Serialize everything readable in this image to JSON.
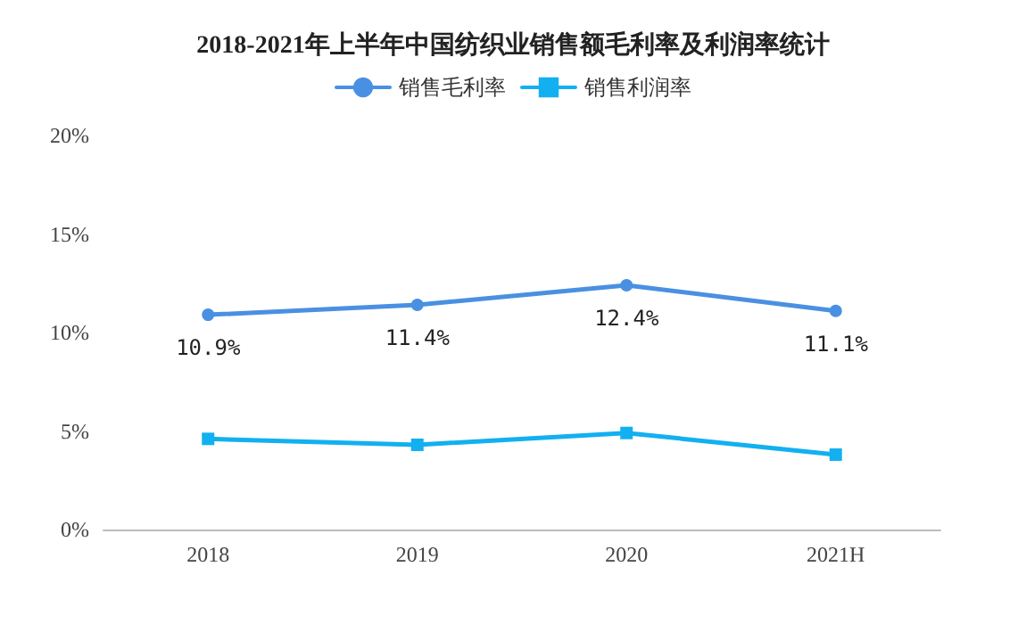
{
  "chart_data": {
    "type": "line",
    "title": "2018-2021年上半年中国纺织业销售额毛利率及利润率统计",
    "categories": [
      "2018",
      "2019",
      "2020",
      "2021H"
    ],
    "series": [
      {
        "name": "销售毛利率",
        "color": "#4a90e2",
        "marker": "circle",
        "values": [
          10.9,
          11.4,
          12.4,
          11.1
        ],
        "value_labels": [
          "10.9%",
          "11.4%",
          "12.4%",
          "11.1%"
        ]
      },
      {
        "name": "销售利润率",
        "color": "#12b0f0",
        "marker": "square",
        "values": [
          4.6,
          4.3,
          4.9,
          3.8
        ]
      }
    ],
    "ylim": [
      0,
      20
    ],
    "yticks": [
      {
        "value": 0,
        "label": "0%"
      },
      {
        "value": 5,
        "label": "5%"
      },
      {
        "value": 10,
        "label": "10%"
      },
      {
        "value": 15,
        "label": "15%"
      },
      {
        "value": 20,
        "label": "20%"
      }
    ],
    "grid": false,
    "legend": "top"
  }
}
